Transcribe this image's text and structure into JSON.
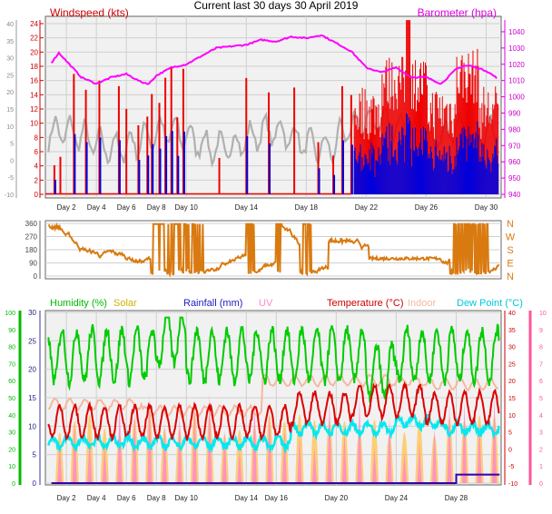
{
  "title": "Current last 30 days 30 April 2019",
  "colors": {
    "wind_gust": "#ee0000",
    "wind_avg": "#0000dd",
    "temp_line": "#b0b0b0",
    "barometer": "#ff00ff",
    "direction": "#d97a10",
    "humidity": "#00cc00",
    "solar": "#ffc860",
    "rainfall": "#3300aa",
    "uv": "#ff88cc",
    "temperature": "#dd0000",
    "indoor": "#f4b8a0",
    "dewpoint": "#00e8f0",
    "axis_green": "#00bb00",
    "axis_pink": "#ff5599",
    "grid": "#cfcfcf"
  },
  "chart_data": [
    {
      "type": "line",
      "panel": "wind-barometer",
      "left_label": "Windspeed (kts)",
      "right_label": "Barometer (hpa)",
      "y_left_ticks": [
        "24",
        "22",
        "20",
        "18",
        "16",
        "14",
        "12",
        "10",
        "8",
        "6",
        "4",
        "2",
        "0"
      ],
      "y_left_ylim": [
        0,
        24
      ],
      "y_far_left_ticks": [
        "40",
        "35",
        "30",
        "25",
        "20",
        "15",
        "10",
        "5",
        "0",
        "-5",
        "-10"
      ],
      "y_right_ticks": [
        "1040",
        "1030",
        "1020",
        "1010",
        "1000",
        "990",
        "980",
        "970",
        "960",
        "950",
        "940"
      ],
      "y_right_ylim": [
        940,
        1045
      ],
      "x_ticks": [
        "Day 2",
        "Day 4",
        "Day 6",
        "Day 8",
        "Day 10",
        "Day 14",
        "Day 18",
        "Day 22",
        "Day 26",
        "Day 30"
      ],
      "x_tick_days": [
        2,
        4,
        6,
        8,
        10,
        14,
        18,
        22,
        26,
        30
      ],
      "barometer_days": [
        1,
        1.5,
        2,
        3,
        4,
        5,
        6,
        7,
        7.5,
        8,
        9,
        10,
        11,
        12,
        13,
        14,
        15,
        16,
        17,
        18,
        19,
        20,
        21,
        22,
        23,
        24,
        25,
        26,
        27,
        28,
        28.5,
        29,
        30,
        30.8
      ],
      "barometer_values": [
        1021,
        1027,
        1022,
        1012,
        1008,
        1012,
        1014,
        1009,
        1008,
        1013,
        1018,
        1020,
        1025,
        1030,
        1031,
        1032,
        1035,
        1034,
        1037,
        1036,
        1038,
        1033,
        1028,
        1018,
        1015,
        1018,
        1012,
        1012,
        1008,
        1017,
        1019,
        1019,
        1016,
        1011
      ]
    },
    {
      "type": "line",
      "panel": "wind-direction",
      "y_left_ticks": [
        "360",
        "270",
        "180",
        "90",
        "0"
      ],
      "y_right_ticks": [
        "N",
        "W",
        "S",
        "E",
        "N"
      ],
      "ylim": [
        0,
        360
      ]
    },
    {
      "type": "line",
      "panel": "temp-humidity",
      "series_labels": [
        "Humidity (%)",
        "Solar",
        "Rainfall (mm)",
        "UV",
        "Temperature (°C)",
        "Indoor",
        "Dew Point (°C)"
      ],
      "y_humidity_ticks": [
        "100",
        "90",
        "80",
        "70",
        "60",
        "50",
        "40",
        "30",
        "20",
        "10",
        "0"
      ],
      "y_rain_ticks": [
        "30",
        "25",
        "20",
        "15",
        "10",
        "5",
        "0"
      ],
      "y_temp_ticks": [
        "40",
        "35",
        "30",
        "25",
        "20",
        "15",
        "10",
        "5",
        "0",
        "-5",
        "-10"
      ],
      "y_uv_ticks": [
        "10",
        "9",
        "8",
        "7",
        "6",
        "5",
        "4",
        "3",
        "2",
        "1",
        "0"
      ],
      "temp_ylim": [
        -10,
        40
      ],
      "x_ticks": [
        "Day 2",
        "Day 4",
        "Day 6",
        "Day 8",
        "Day 10",
        "Day 14",
        "Day 16",
        "Day 20",
        "Day 24",
        "Day 28"
      ],
      "x_tick_days": [
        2,
        4,
        6,
        8,
        10,
        14,
        16,
        20,
        24,
        28
      ],
      "rainfall_days": [
        1,
        27.5,
        28,
        29,
        30
      ],
      "rainfall_values": [
        0,
        0,
        1.5,
        1.5,
        1.5
      ]
    }
  ]
}
